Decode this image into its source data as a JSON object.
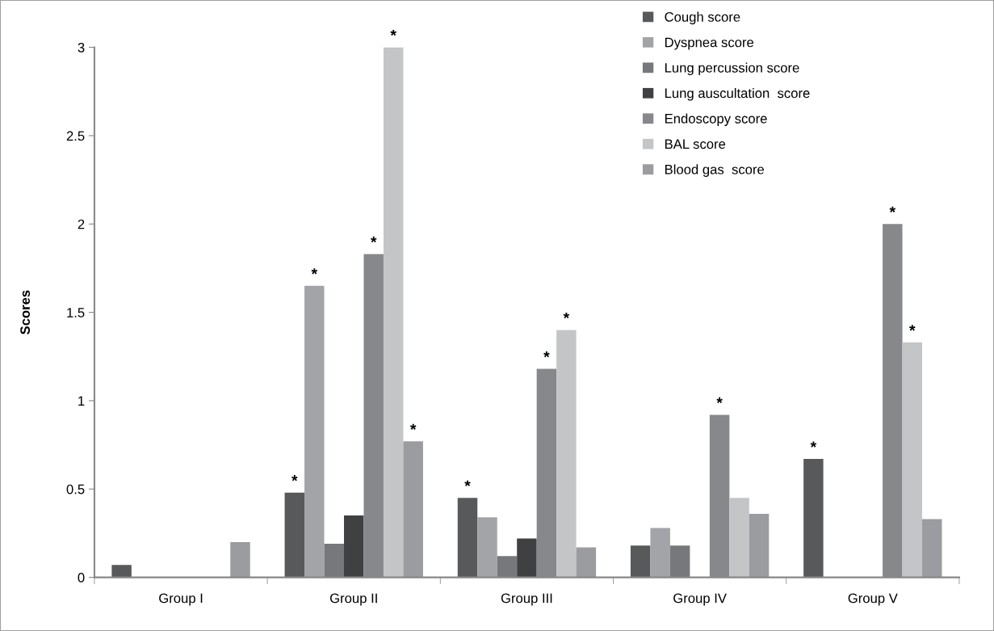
{
  "chart_data": {
    "type": "bar",
    "ylabel": "Scores",
    "categories": [
      "Group I",
      "Group II",
      "Group III",
      "Group IV",
      "Group V"
    ],
    "series": [
      {
        "name": "Cough score",
        "color": "#58595b",
        "values": [
          0.07,
          0.48,
          0.45,
          0.18,
          0.67
        ],
        "value_labels": [
          null,
          "*",
          "*",
          null,
          "*"
        ]
      },
      {
        "name": "Dyspnea score",
        "color": "#a3a4a8",
        "values": [
          0,
          1.65,
          0.34,
          0.28,
          0
        ],
        "value_labels": [
          null,
          "*",
          null,
          null,
          null
        ]
      },
      {
        "name": "Lung percussion score",
        "color": "#77787b",
        "values": [
          0,
          0.19,
          0.12,
          0.18,
          0
        ],
        "value_labels": [
          null,
          null,
          null,
          null,
          null
        ]
      },
      {
        "name": "Lung auscultation  score",
        "color": "#404042",
        "values": [
          0,
          0.35,
          0.22,
          0,
          0
        ],
        "value_labels": [
          null,
          null,
          null,
          null,
          null
        ]
      },
      {
        "name": "Endoscopy score",
        "color": "#87888c",
        "values": [
          0,
          1.83,
          1.18,
          0.92,
          2.0
        ],
        "value_labels": [
          null,
          "*",
          "*",
          "*",
          "*"
        ]
      },
      {
        "name": "BAL score",
        "color": "#c4c5c7",
        "values": [
          0,
          3.0,
          1.4,
          0.45,
          1.33
        ],
        "value_labels": [
          null,
          "*",
          "*",
          null,
          "*"
        ]
      },
      {
        "name": "Blood gas  score",
        "color": "#9b9ca0",
        "values": [
          0.2,
          0.77,
          0.17,
          0.36,
          0.33
        ],
        "value_labels": [
          null,
          "*",
          null,
          null,
          null
        ]
      }
    ],
    "ylim": [
      0,
      3
    ],
    "yticks": [
      0,
      0.5,
      1,
      1.5,
      2,
      2.5,
      3
    ],
    "grid": false,
    "legend": "top right"
  }
}
